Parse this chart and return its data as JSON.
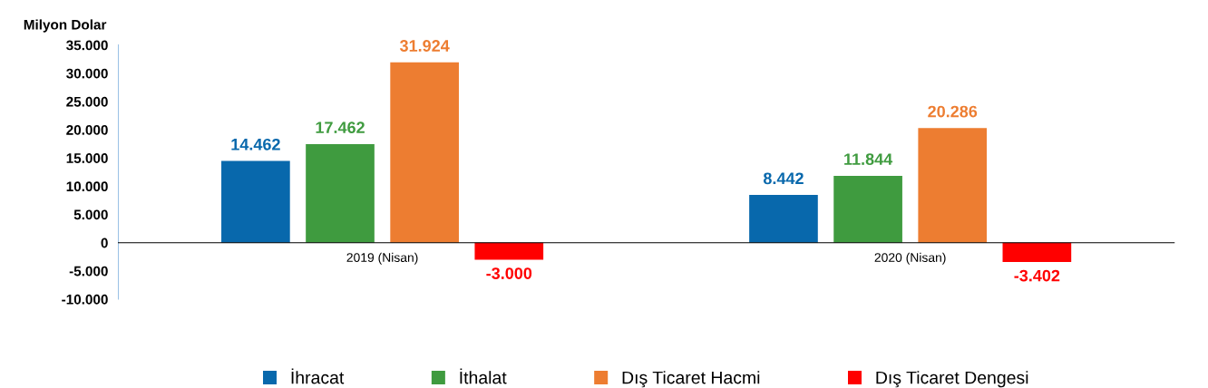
{
  "chart_data": {
    "type": "bar",
    "ylabel": "Milyon Dolar",
    "categories": [
      "2019 (Nisan)",
      "2020 (Nisan)"
    ],
    "series": [
      {
        "name": "İhracat",
        "color": "#0868ac",
        "values": [
          14462,
          8442
        ],
        "value_labels": [
          "14.462",
          "8.442"
        ]
      },
      {
        "name": "İthalat",
        "color": "#3f9b3f",
        "values": [
          17462,
          11844
        ],
        "value_labels": [
          "17.462",
          "11.844"
        ]
      },
      {
        "name": "Dış Ticaret Hacmi",
        "color": "#ed7d31",
        "values": [
          31924,
          20286
        ],
        "value_labels": [
          "31.924",
          "20.286"
        ]
      },
      {
        "name": "Dış Ticaret Dengesi",
        "color": "#ff0000",
        "values": [
          -3000,
          -3402
        ],
        "value_labels": [
          "-3.000",
          "-3.402"
        ]
      }
    ],
    "ylim": [
      -10000,
      35000
    ],
    "yticks": [
      {
        "value": -10000,
        "label": "-10.000"
      },
      {
        "value": -5000,
        "label": "-5.000"
      },
      {
        "value": 0,
        "label": "0"
      },
      {
        "value": 5000,
        "label": "5.000"
      },
      {
        "value": 10000,
        "label": "10.000"
      },
      {
        "value": 15000,
        "label": "15.000"
      },
      {
        "value": 20000,
        "label": "20.000"
      },
      {
        "value": 25000,
        "label": "25.000"
      },
      {
        "value": 30000,
        "label": "30.000"
      },
      {
        "value": 35000,
        "label": "35.000"
      }
    ],
    "grid": false,
    "legend": "bottom"
  }
}
